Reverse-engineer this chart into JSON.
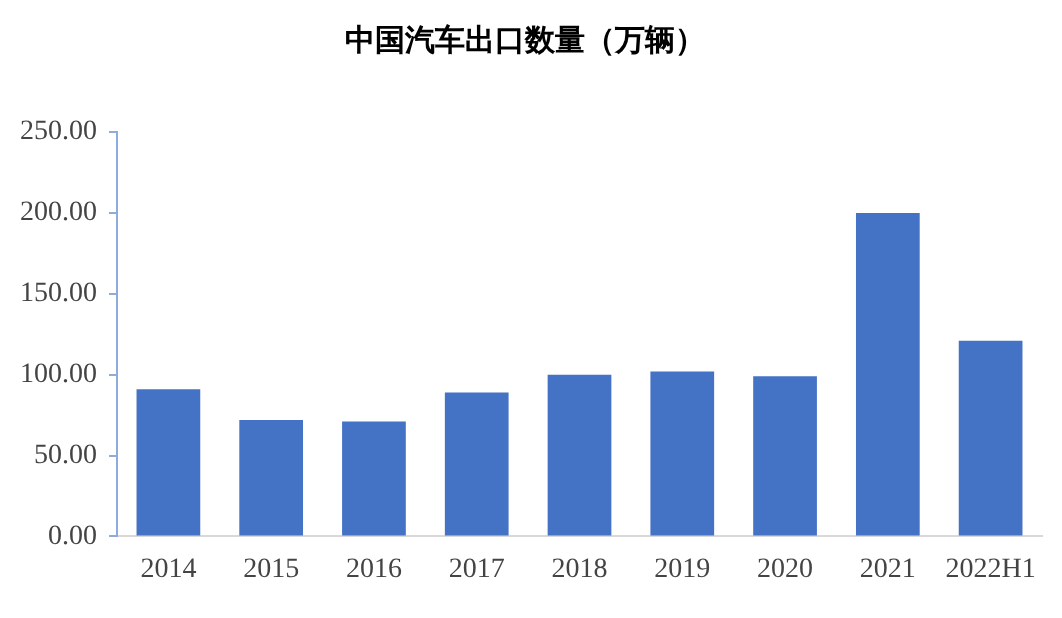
{
  "chart_data": {
    "type": "bar",
    "title": "中国汽车出口数量（万辆）",
    "categories": [
      "2014",
      "2015",
      "2016",
      "2017",
      "2018",
      "2019",
      "2020",
      "2021",
      "2022H1"
    ],
    "values": [
      91,
      72,
      71,
      89,
      100,
      102,
      99,
      200,
      121
    ],
    "color": "#4472c4",
    "ylim": [
      0,
      250
    ],
    "yticks": [
      {
        "value": 0,
        "label": "0.00"
      },
      {
        "value": 50,
        "label": "50.00"
      },
      {
        "value": 100,
        "label": "100.00"
      },
      {
        "value": 150,
        "label": "150.00"
      },
      {
        "value": 200,
        "label": "200.00"
      },
      {
        "value": 250,
        "label": "250.00"
      }
    ],
    "grid": false,
    "legend": false
  }
}
